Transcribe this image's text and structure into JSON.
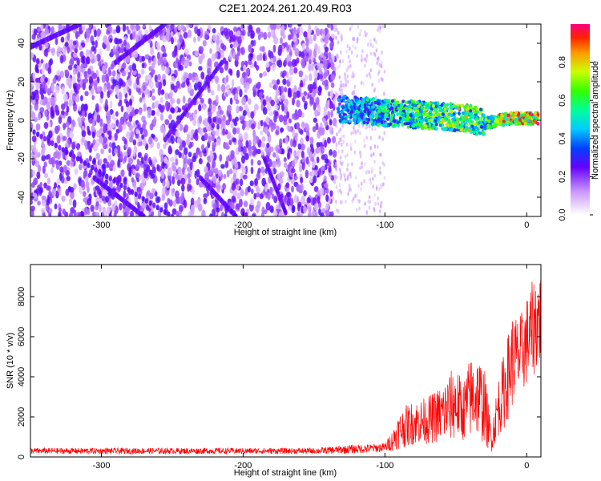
{
  "title": "C2E1.2024.261.20.49.R03",
  "chart_data": [
    {
      "type": "heatmap",
      "xlabel": "Height of straight line (km)",
      "ylabel": "Frequency (Hz)",
      "xlim": [
        -350,
        10
      ],
      "ylim": [
        -50,
        50
      ],
      "x_ticks": [
        -300,
        -200,
        -100,
        0
      ],
      "y_ticks": [
        -40,
        -20,
        0,
        20,
        40
      ],
      "colorbar": {
        "label": "Normalized spectral amplitude",
        "range": [
          0,
          1
        ],
        "ticks": [
          0.0,
          0.2,
          0.4,
          0.6,
          0.8
        ]
      },
      "features": {
        "noise_region_x": [
          -350,
          -100
        ],
        "dense_noise_end_x": -135,
        "sparse_band_x": [
          -135,
          -100
        ],
        "carrier_track": [
          {
            "x": -133,
            "freq": 6,
            "amp": 0.45
          },
          {
            "x": -120,
            "freq": 5,
            "amp": 0.5
          },
          {
            "x": -100,
            "freq": 4,
            "amp": 0.55
          },
          {
            "x": -80,
            "freq": 3,
            "amp": 0.65
          },
          {
            "x": -60,
            "freq": 2,
            "amp": 0.7
          },
          {
            "x": -40,
            "freq": 1,
            "amp": 0.75
          },
          {
            "x": -30,
            "freq": -2,
            "amp": 0.6
          },
          {
            "x": -20,
            "freq": 0,
            "amp": 0.8
          },
          {
            "x": -10,
            "freq": 1,
            "amp": 0.9
          },
          {
            "x": 0,
            "freq": 1,
            "amp": 0.95
          },
          {
            "x": 8,
            "freq": 1,
            "amp": 0.95
          }
        ]
      }
    },
    {
      "type": "line",
      "xlabel": "Height of straight line (km)",
      "ylabel": "SNR (10 * v/v)",
      "xlim": [
        -350,
        10
      ],
      "ylim": [
        0,
        9600
      ],
      "x_ticks": [
        -300,
        -200,
        -100,
        0
      ],
      "y_ticks": [
        0,
        2000,
        4000,
        6000,
        8000
      ],
      "series": [
        {
          "color": "#ff0000",
          "envelope_x": [
            -350,
            -150,
            -125,
            -110,
            -100,
            -95,
            -90,
            -85,
            -80,
            -70,
            -60,
            -55,
            -50,
            -45,
            -40,
            -35,
            -30,
            -25,
            -20,
            -15,
            -10,
            -5,
            0,
            5,
            8
          ],
          "envelope_max": [
            450,
            450,
            600,
            650,
            700,
            1300,
            2200,
            2600,
            2800,
            3000,
            3600,
            4200,
            4600,
            3700,
            5000,
            5200,
            4600,
            1500,
            4000,
            5600,
            7200,
            7000,
            8000,
            9000,
            9300
          ],
          "envelope_min": [
            150,
            150,
            160,
            200,
            250,
            300,
            400,
            500,
            600,
            650,
            700,
            750,
            800,
            800,
            900,
            1000,
            600,
            200,
            1000,
            1500,
            2500,
            3000,
            3500,
            4000,
            4500
          ]
        }
      ]
    }
  ]
}
